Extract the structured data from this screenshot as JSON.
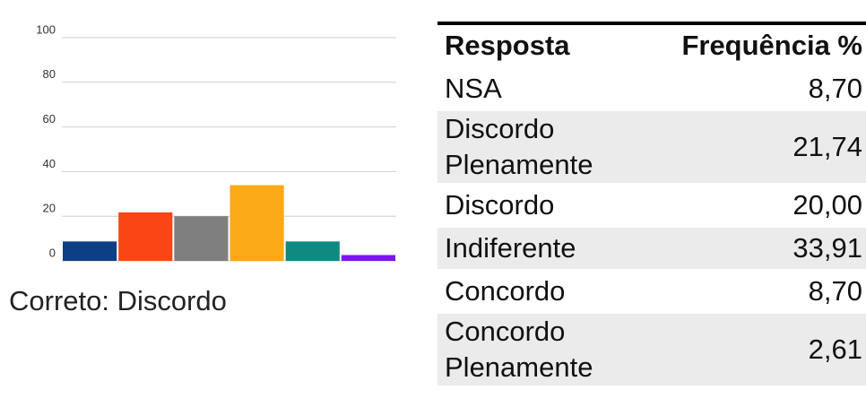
{
  "chart_data": {
    "type": "bar",
    "values": [
      8.7,
      21.74,
      20.0,
      33.91,
      8.7,
      2.61
    ],
    "colors": [
      "#0d3f87",
      "#fa4614",
      "#7f7f7f",
      "#fba917",
      "#0f8a80",
      "#7b14f0"
    ],
    "ylim": [
      0,
      100
    ],
    "yticks": [
      0,
      20,
      40,
      60,
      80,
      100
    ],
    "grid": true,
    "caption": "Correto: Discordo"
  },
  "table": {
    "header": [
      "Resposta",
      "Frequência %"
    ],
    "rows": [
      [
        "NSA",
        "8,70"
      ],
      [
        "Discordo Plenamente",
        "21,74"
      ],
      [
        "Discordo",
        "20,00"
      ],
      [
        "Indiferente",
        "33,91"
      ],
      [
        "Concordo",
        "8,70"
      ],
      [
        "Concordo Plenamente",
        "2,61"
      ]
    ]
  }
}
